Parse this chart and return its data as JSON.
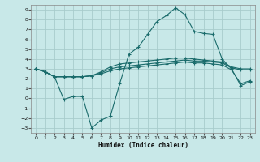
{
  "xlabel": "Humidex (Indice chaleur)",
  "bg_color": "#c8e8e8",
  "line_color": "#1a6b6b",
  "grid_color": "#a8cccc",
  "xlim": [
    -0.5,
    23.5
  ],
  "ylim": [
    -3.5,
    9.5
  ],
  "xticks": [
    0,
    1,
    2,
    3,
    4,
    5,
    6,
    7,
    8,
    9,
    10,
    11,
    12,
    13,
    14,
    15,
    16,
    17,
    18,
    19,
    20,
    21,
    22,
    23
  ],
  "yticks": [
    -3,
    -2,
    -1,
    0,
    1,
    2,
    3,
    4,
    5,
    6,
    7,
    8,
    9
  ],
  "lines": [
    [
      3.0,
      2.7,
      2.2,
      2.2,
      2.2,
      2.2,
      2.3,
      2.5,
      2.8,
      3.0,
      3.1,
      3.2,
      3.3,
      3.4,
      3.5,
      3.6,
      3.7,
      3.6,
      3.6,
      3.5,
      3.4,
      2.9,
      1.5,
      1.8
    ],
    [
      3.0,
      2.7,
      2.2,
      2.2,
      2.2,
      2.2,
      2.3,
      2.6,
      3.0,
      3.2,
      3.3,
      3.4,
      3.5,
      3.6,
      3.7,
      3.8,
      3.9,
      3.8,
      3.8,
      3.7,
      3.6,
      3.1,
      2.9,
      2.9
    ],
    [
      3.0,
      2.7,
      2.2,
      2.2,
      2.2,
      2.2,
      2.3,
      2.7,
      3.2,
      3.5,
      3.6,
      3.7,
      3.8,
      3.9,
      4.0,
      4.1,
      4.1,
      4.0,
      3.9,
      3.8,
      3.7,
      3.2,
      3.0,
      3.0
    ],
    [
      3.0,
      2.7,
      2.2,
      -0.1,
      0.2,
      0.2,
      -3.0,
      -2.2,
      -1.8,
      1.5,
      4.5,
      5.2,
      6.5,
      7.8,
      8.4,
      9.2,
      8.5,
      6.8,
      6.6,
      6.5,
      4.0,
      3.0,
      1.3,
      1.7
    ]
  ]
}
